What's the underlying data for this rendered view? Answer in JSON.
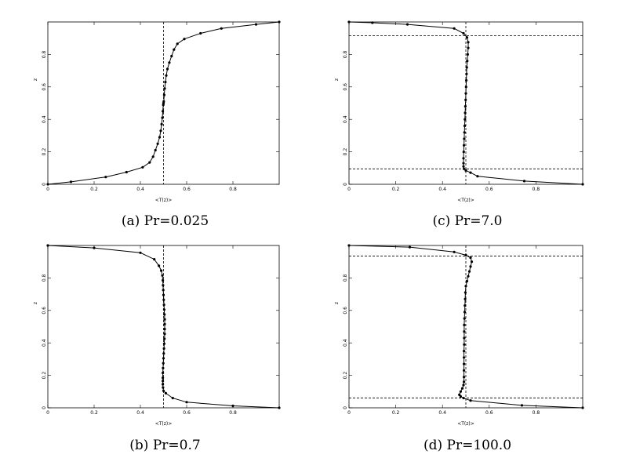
{
  "chart_data": [
    {
      "type": "line",
      "caption": "(a) Pr=0.025",
      "xlabel": "<T(z)>",
      "ylabel": "z",
      "xlim": [
        0,
        1
      ],
      "ylim": [
        0,
        1
      ],
      "xticks": [
        "0",
        "0.2",
        "0.4",
        "0.6",
        "0.8"
      ],
      "yticks": [
        "0",
        "0.2",
        "0.4",
        "0.6",
        "0.8"
      ],
      "vline": 0.5,
      "hlines": [],
      "x": [
        1.0,
        0.9,
        0.75,
        0.66,
        0.59,
        0.56,
        0.545,
        0.535,
        0.525,
        0.517,
        0.512,
        0.508,
        0.505,
        0.503,
        0.501,
        0.5,
        0.499,
        0.497,
        0.495,
        0.492,
        0.488,
        0.483,
        0.475,
        0.465,
        0.455,
        0.44,
        0.41,
        0.34,
        0.25,
        0.1,
        0.0
      ],
      "y": [
        1.0,
        0.985,
        0.96,
        0.93,
        0.895,
        0.865,
        0.83,
        0.79,
        0.75,
        0.71,
        0.67,
        0.63,
        0.59,
        0.55,
        0.51,
        0.5,
        0.49,
        0.45,
        0.41,
        0.37,
        0.33,
        0.29,
        0.25,
        0.21,
        0.17,
        0.135,
        0.105,
        0.075,
        0.045,
        0.015,
        0.0
      ]
    },
    {
      "type": "line",
      "caption": "(b) Pr=0.7",
      "xlabel": "<T(z)>",
      "ylabel": "z",
      "xlim": [
        0,
        1
      ],
      "ylim": [
        0,
        1
      ],
      "xticks": [
        "0",
        "0.2",
        "0.4",
        "0.6",
        "0.8"
      ],
      "yticks": [
        "0",
        "0.2",
        "0.4",
        "0.6",
        "0.8"
      ],
      "vline": 0.5,
      "hlines": [],
      "x": [
        0.0,
        0.2,
        0.4,
        0.46,
        0.48,
        0.49,
        0.495,
        0.497,
        0.498,
        0.499,
        0.5,
        0.501,
        0.502,
        0.503,
        0.504,
        0.505,
        0.505,
        0.505,
        0.505,
        0.504,
        0.503,
        0.502,
        0.501,
        0.5,
        0.499,
        0.498,
        0.497,
        0.497,
        0.497,
        0.497,
        0.498,
        0.5,
        0.51,
        0.54,
        0.6,
        0.8,
        1.0
      ],
      "y": [
        1.0,
        0.985,
        0.955,
        0.915,
        0.875,
        0.845,
        0.815,
        0.785,
        0.755,
        0.725,
        0.695,
        0.665,
        0.635,
        0.605,
        0.575,
        0.545,
        0.515,
        0.485,
        0.455,
        0.425,
        0.395,
        0.365,
        0.335,
        0.305,
        0.275,
        0.245,
        0.215,
        0.185,
        0.165,
        0.145,
        0.125,
        0.105,
        0.09,
        0.06,
        0.035,
        0.012,
        0.0
      ]
    },
    {
      "type": "line",
      "caption": "(c) Pr=7.0",
      "xlabel": "<T(z)>",
      "ylabel": "z",
      "xlim": [
        0,
        1
      ],
      "ylim": [
        0,
        1
      ],
      "xticks": [
        "0",
        "0.2",
        "0.4",
        "0.6",
        "0.8"
      ],
      "yticks": [
        "0",
        "0.2",
        "0.4",
        "0.6",
        "0.8"
      ],
      "vline": 0.5,
      "hlines": [
        0.915,
        0.095
      ],
      "x": [
        0.0,
        0.1,
        0.25,
        0.45,
        0.49,
        0.505,
        0.51,
        0.51,
        0.508,
        0.506,
        0.504,
        0.503,
        0.502,
        0.501,
        0.5,
        0.499,
        0.498,
        0.497,
        0.496,
        0.495,
        0.494,
        0.493,
        0.492,
        0.491,
        0.49,
        0.49,
        0.49,
        0.492,
        0.5,
        0.52,
        0.55,
        0.75,
        1.0
      ],
      "y": [
        1.0,
        0.995,
        0.985,
        0.96,
        0.93,
        0.905,
        0.875,
        0.84,
        0.8,
        0.76,
        0.72,
        0.68,
        0.64,
        0.6,
        0.56,
        0.52,
        0.48,
        0.44,
        0.4,
        0.36,
        0.32,
        0.28,
        0.24,
        0.2,
        0.16,
        0.13,
        0.11,
        0.095,
        0.085,
        0.072,
        0.05,
        0.02,
        0.0
      ]
    },
    {
      "type": "line",
      "caption": "(d) Pr=100.0",
      "xlabel": "<T(z)>",
      "ylabel": "z",
      "xlim": [
        0,
        1
      ],
      "ylim": [
        0,
        1
      ],
      "xticks": [
        "0",
        "0.2",
        "0.4",
        "0.6",
        "0.8"
      ],
      "yticks": [
        "0",
        "0.2",
        "0.4",
        "0.6",
        "0.8"
      ],
      "vline": 0.5,
      "hlines": [
        0.935,
        0.06
      ],
      "x": [
        0.0,
        0.26,
        0.45,
        0.5,
        0.52,
        0.525,
        0.52,
        0.515,
        0.51,
        0.505,
        0.5,
        0.498,
        0.497,
        0.496,
        0.495,
        0.494,
        0.493,
        0.493,
        0.493,
        0.493,
        0.492,
        0.492,
        0.492,
        0.492,
        0.492,
        0.492,
        0.49,
        0.485,
        0.478,
        0.472,
        0.478,
        0.49,
        0.52,
        0.74,
        1.0
      ],
      "y": [
        1.0,
        0.99,
        0.96,
        0.94,
        0.925,
        0.9,
        0.87,
        0.84,
        0.81,
        0.78,
        0.75,
        0.71,
        0.67,
        0.63,
        0.59,
        0.55,
        0.51,
        0.47,
        0.43,
        0.39,
        0.35,
        0.31,
        0.27,
        0.23,
        0.19,
        0.16,
        0.14,
        0.12,
        0.1,
        0.08,
        0.07,
        0.06,
        0.045,
        0.015,
        0.0
      ]
    }
  ]
}
